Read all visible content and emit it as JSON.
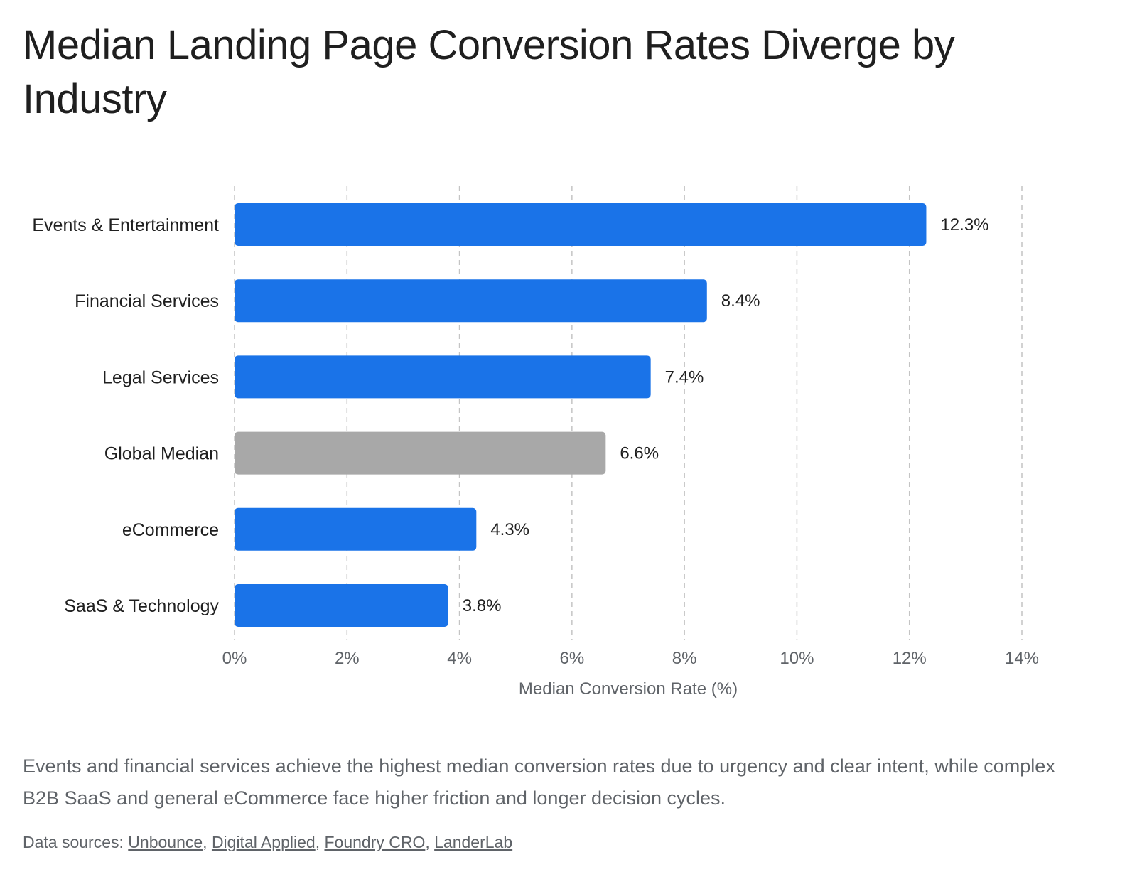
{
  "title": "Median Landing Page Conversion Rates Diverge by Industry",
  "caption": "Events and financial services achieve the highest median conversion rates due to urgency and clear intent, while complex B2B SaaS and general eCommerce face higher friction and longer decision cycles.",
  "sources": {
    "prefix": "Data sources: ",
    "separator": ", ",
    "links": [
      "Unbounce",
      "Digital Applied",
      "Foundry CRO",
      "LanderLab"
    ]
  },
  "colors": {
    "primary_bar": "#1a73e8",
    "highlight_bar": "#a8a8a8",
    "gridline": "#c4c4c4"
  },
  "chart_data": {
    "type": "bar",
    "orientation": "horizontal",
    "title": "Median Landing Page Conversion Rates Diverge by Industry",
    "categories": [
      "Events & Entertainment",
      "Financial Services",
      "Legal Services",
      "Global Median",
      "eCommerce",
      "SaaS & Technology"
    ],
    "values": [
      12.3,
      8.4,
      7.4,
      6.6,
      4.3,
      3.8
    ],
    "value_labels": [
      "12.3%",
      "8.4%",
      "7.4%",
      "6.6%",
      "4.3%",
      "3.8%"
    ],
    "highlight_category": "Global Median",
    "xlabel": "Median Conversion Rate (%)",
    "ylabel": "",
    "xlim": [
      0,
      14
    ],
    "x_ticks": [
      0,
      2,
      4,
      6,
      8,
      10,
      12,
      14
    ],
    "x_tick_labels": [
      "0%",
      "2%",
      "4%",
      "6%",
      "8%",
      "10%",
      "12%",
      "14%"
    ],
    "grid": true,
    "grid_style": "dashed",
    "legend": "none"
  }
}
